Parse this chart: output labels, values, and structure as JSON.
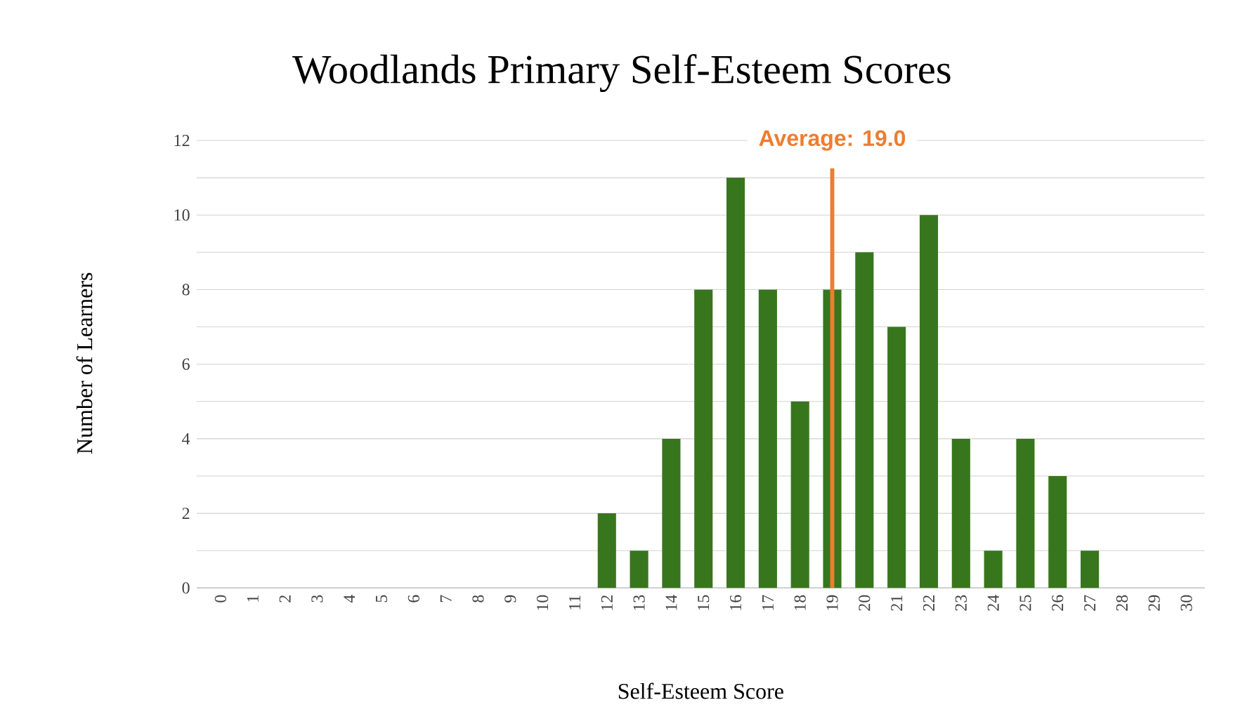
{
  "chart_data": {
    "type": "bar",
    "title": "Woodlands Primary Self-Esteem Scores",
    "xlabel": "Self-Esteem Score",
    "ylabel": "Number of Learners",
    "categories": [
      "0",
      "1",
      "2",
      "3",
      "4",
      "5",
      "6",
      "7",
      "8",
      "9",
      "10",
      "11",
      "12",
      "13",
      "14",
      "15",
      "16",
      "17",
      "18",
      "19",
      "20",
      "21",
      "22",
      "23",
      "24",
      "25",
      "26",
      "27",
      "28",
      "29",
      "30"
    ],
    "values": [
      0,
      0,
      0,
      0,
      0,
      0,
      0,
      0,
      0,
      0,
      0,
      0,
      2,
      1,
      4,
      8,
      11,
      8,
      5,
      8,
      9,
      7,
      10,
      4,
      1,
      4,
      3,
      1,
      0,
      0,
      0
    ],
    "color": "#38761d",
    "ylim": [
      0,
      12
    ],
    "yticks": [
      0,
      {
        "value": 1,
        "label": null
      },
      2,
      {
        "value": 3,
        "label": null
      },
      4,
      {
        "value": 5,
        "label": null
      },
      6,
      {
        "value": 7,
        "label": null
      },
      8,
      {
        "value": 9,
        "label": null
      },
      10,
      {
        "value": 11,
        "label": null
      },
      12
    ],
    "grid": "y",
    "ref_lines": [
      {
        "axis": "x",
        "value": "19",
        "label": "Average: 19.0",
        "color": "#ed7d31"
      }
    ]
  }
}
